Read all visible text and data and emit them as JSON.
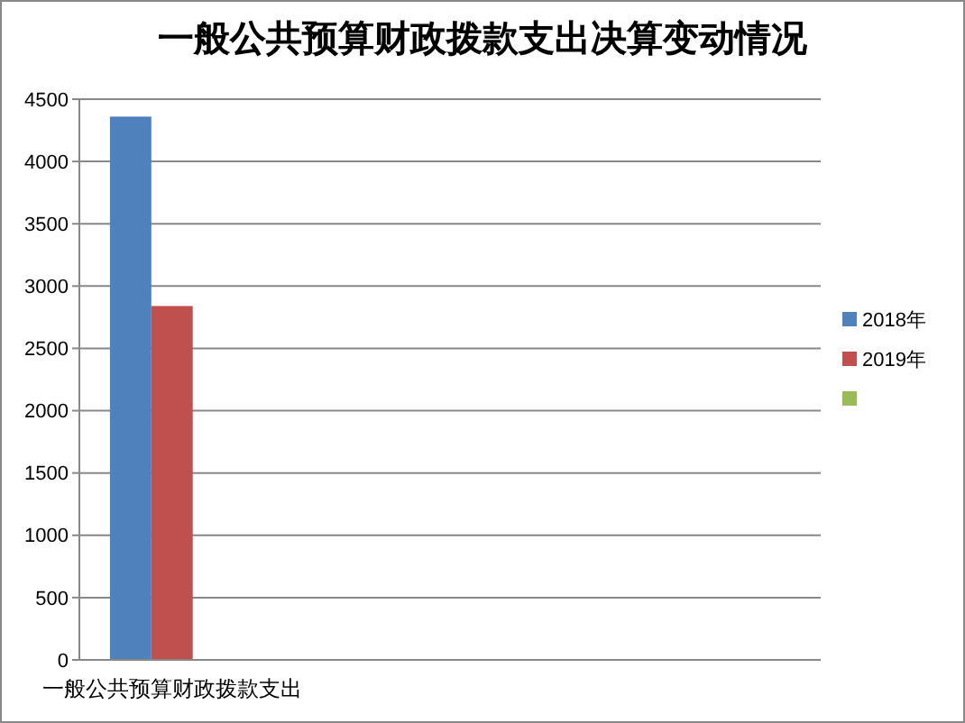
{
  "chart_data": {
    "type": "bar",
    "title": "一般公共预算财政拨款支出决算变动情况",
    "categories": [
      "一般公共预算财政拨款支出",
      null,
      null,
      null
    ],
    "series": [
      {
        "name": "2018年",
        "color": "#4f81bd",
        "values": [
          4360,
          null,
          null,
          null
        ]
      },
      {
        "name": "2019年",
        "color": "#c0504d",
        "values": [
          2840,
          null,
          null,
          null
        ]
      },
      {
        "color": "#9bbb59",
        "values": [
          null,
          null,
          null,
          null
        ]
      }
    ],
    "ylim": [
      0,
      4500
    ],
    "yticks": [
      0,
      500,
      1000,
      1500,
      2000,
      2500,
      3000,
      3500,
      4000,
      4500
    ],
    "grid": "y",
    "legend": "right"
  }
}
